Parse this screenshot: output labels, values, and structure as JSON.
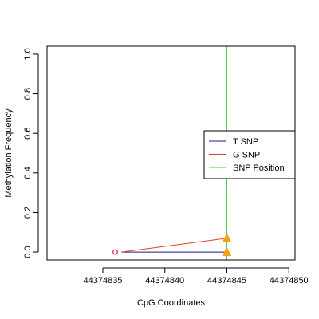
{
  "chart_data": {
    "type": "line",
    "xlabel": "CpG Coordinates",
    "ylabel": "Methylation Frequency",
    "xlim": [
      44374830.5,
      44374850.5
    ],
    "ylim": [
      -0.04,
      1.04
    ],
    "x_ticks": [
      44374835,
      44374840,
      44374845,
      44374850
    ],
    "x_tick_labels": [
      "44374835",
      "44374840",
      "44374845",
      "44374850"
    ],
    "y_ticks": [
      0.0,
      0.2,
      0.4,
      0.6,
      0.8,
      1.0
    ],
    "y_tick_labels": [
      "0.0",
      "0.2",
      "0.4",
      "0.6",
      "0.8",
      "1.0"
    ],
    "series": [
      {
        "name": "T SNP",
        "color": "#1a1a8c",
        "points": [
          {
            "x": 44374836.5,
            "y": 0.0
          },
          {
            "x": 44374845,
            "y": 0.0
          }
        ]
      },
      {
        "name": "G SNP",
        "color": "#e8402a",
        "points": [
          {
            "x": 44374836.5,
            "y": 0.0
          },
          {
            "x": 44374845,
            "y": 0.07
          }
        ]
      }
    ],
    "snp_position": {
      "name": "SNP Position",
      "x": 44374845,
      "color": "#3ed63e"
    },
    "open_points": [
      {
        "x": 44374836,
        "y": 0.0,
        "color": "#c8102e"
      }
    ],
    "triangle_markers": [
      {
        "x": 44374845,
        "y": 0.0,
        "color": "#f2a11a"
      },
      {
        "x": 44374845,
        "y": 0.07,
        "color": "#f2a11a"
      }
    ],
    "legend": {
      "position": "right",
      "entries": [
        {
          "label": "T SNP",
          "color": "#1a1a8c"
        },
        {
          "label": "G SNP",
          "color": "#e8402a"
        },
        {
          "label": "SNP Position",
          "color": "#3ed63e"
        }
      ]
    }
  }
}
